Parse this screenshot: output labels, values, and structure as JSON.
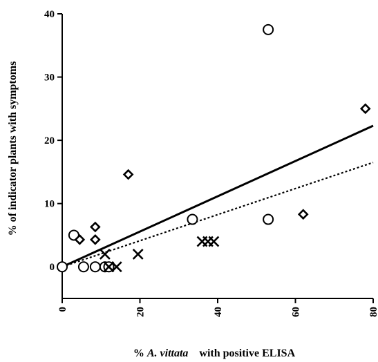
{
  "chart_data": {
    "type": "scatter",
    "xlabel_parts": [
      {
        "text": "% ",
        "italic": false
      },
      {
        "text": "A. vittata",
        "italic": true
      },
      {
        "text": "    with positive ELISA",
        "italic": false
      }
    ],
    "ylabel": "% of indicator plants with symptoms",
    "xlim": [
      0,
      80
    ],
    "ylim": [
      -5,
      40
    ],
    "x_ticks": [
      0,
      20,
      40,
      60,
      80
    ],
    "y_ticks": [
      0,
      10,
      20,
      30,
      40
    ],
    "grid": false,
    "series": [
      {
        "marker": "circle",
        "points": [
          [
            0,
            0
          ],
          [
            3,
            5
          ],
          [
            5.5,
            0
          ],
          [
            8.5,
            0
          ],
          [
            11,
            0
          ],
          [
            12,
            0
          ],
          [
            33.5,
            7.5
          ],
          [
            53,
            37.5
          ],
          [
            53,
            7.5
          ]
        ]
      },
      {
        "marker": "diamond",
        "points": [
          [
            4.5,
            4.3
          ],
          [
            8.5,
            6.3
          ],
          [
            8.5,
            4.3
          ],
          [
            17,
            14.6
          ],
          [
            62,
            8.3
          ],
          [
            78,
            25
          ]
        ]
      },
      {
        "marker": "cross",
        "points": [
          [
            11,
            2
          ],
          [
            12,
            0
          ],
          [
            14,
            0
          ],
          [
            19.5,
            2
          ],
          [
            36,
            4
          ],
          [
            37.5,
            4
          ],
          [
            39,
            4
          ]
        ]
      }
    ],
    "fit_lines": [
      {
        "style": "solid",
        "x": [
          0,
          80
        ],
        "y": [
          0,
          22.3
        ]
      },
      {
        "style": "dotted",
        "x": [
          0,
          80
        ],
        "y": [
          0,
          16.5
        ]
      }
    ]
  }
}
